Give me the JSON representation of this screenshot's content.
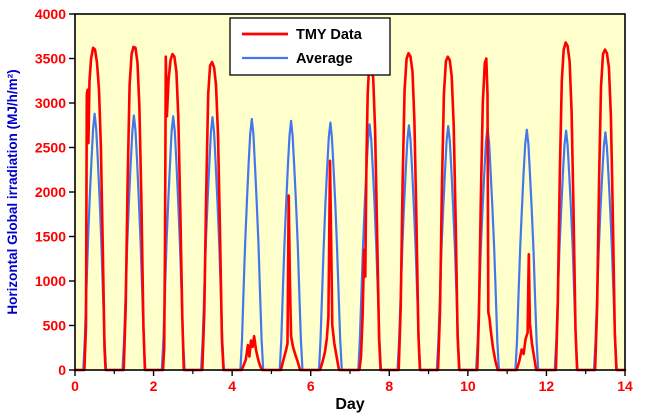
{
  "chart_data": {
    "type": "line",
    "title": "",
    "xlabel": "Day",
    "ylabel": "Horizontal Global irradiation (MJ/h/m²)",
    "xlim": [
      0,
      14
    ],
    "ylim": [
      0,
      4000
    ],
    "x_major_ticks": [
      0,
      2,
      4,
      6,
      8,
      10,
      12,
      14
    ],
    "x_minor_ticks": [
      1,
      3,
      5,
      7,
      9,
      11,
      13
    ],
    "y_ticks": [
      0,
      500,
      1000,
      1500,
      2000,
      2500,
      3000,
      3500,
      4000
    ],
    "plot_background": "#FFFFCC",
    "axis_color": "#000000",
    "tick_label_color": "#FF0000",
    "xlabel_color": "#000000",
    "ylabel_color": "#0000CC",
    "grid": false,
    "legend": {
      "position": "top-center",
      "entries": [
        {
          "label": "TMY Data",
          "color": "#FF0000"
        },
        {
          "label": "Average",
          "color": "#4477EE"
        }
      ]
    },
    "series": {
      "average": {
        "name": "Average",
        "color": "#4477EE",
        "daily_peaks": [
          2880,
          2860,
          2850,
          2840,
          2820,
          2800,
          2780,
          2760,
          2750,
          2740,
          2720,
          2700,
          2690,
          2670
        ],
        "day_shape": [
          [
            0.21,
            0
          ],
          [
            0.25,
            0.12
          ],
          [
            0.29,
            0.31
          ],
          [
            0.33,
            0.5
          ],
          [
            0.375,
            0.67
          ],
          [
            0.42,
            0.82
          ],
          [
            0.46,
            0.94
          ],
          [
            0.5,
            1.0
          ],
          [
            0.54,
            0.94
          ],
          [
            0.58,
            0.82
          ],
          [
            0.625,
            0.67
          ],
          [
            0.67,
            0.5
          ],
          [
            0.71,
            0.31
          ],
          [
            0.75,
            0.12
          ],
          [
            0.79,
            0
          ]
        ]
      },
      "tmy": {
        "name": "TMY Data",
        "color": "#FF0000",
        "daily_points": [
          [
            [
              0.24,
              0
            ],
            [
              0.28,
              500
            ],
            [
              0.3,
              3100
            ],
            [
              0.32,
              3150
            ],
            [
              0.34,
              2550
            ],
            [
              0.37,
              3250
            ],
            [
              0.41,
              3500
            ],
            [
              0.46,
              3620
            ],
            [
              0.51,
              3600
            ],
            [
              0.56,
              3450
            ],
            [
              0.61,
              3150
            ],
            [
              0.66,
              2500
            ],
            [
              0.71,
              1300
            ],
            [
              0.75,
              250
            ],
            [
              0.78,
              0
            ]
          ],
          [
            [
              0.24,
              0
            ],
            [
              0.29,
              700
            ],
            [
              0.34,
              2100
            ],
            [
              0.39,
              3200
            ],
            [
              0.44,
              3550
            ],
            [
              0.49,
              3630
            ],
            [
              0.54,
              3620
            ],
            [
              0.59,
              3450
            ],
            [
              0.64,
              2950
            ],
            [
              0.69,
              1900
            ],
            [
              0.74,
              500
            ],
            [
              0.78,
              0
            ]
          ],
          [
            [
              0.24,
              0
            ],
            [
              0.27,
              250
            ],
            [
              0.29,
              1400
            ],
            [
              0.31,
              3520
            ],
            [
              0.34,
              2850
            ],
            [
              0.38,
              3250
            ],
            [
              0.43,
              3480
            ],
            [
              0.48,
              3550
            ],
            [
              0.53,
              3520
            ],
            [
              0.58,
              3350
            ],
            [
              0.63,
              2850
            ],
            [
              0.68,
              1800
            ],
            [
              0.73,
              600
            ],
            [
              0.77,
              0
            ]
          ],
          [
            [
              0.24,
              0
            ],
            [
              0.29,
              650
            ],
            [
              0.34,
              2000
            ],
            [
              0.39,
              3100
            ],
            [
              0.44,
              3420
            ],
            [
              0.49,
              3460
            ],
            [
              0.54,
              3400
            ],
            [
              0.59,
              3200
            ],
            [
              0.64,
              2650
            ],
            [
              0.69,
              1550
            ],
            [
              0.74,
              350
            ],
            [
              0.78,
              0
            ]
          ],
          [
            [
              0.24,
              0
            ],
            [
              0.3,
              60
            ],
            [
              0.35,
              120
            ],
            [
              0.4,
              280
            ],
            [
              0.44,
              150
            ],
            [
              0.48,
              330
            ],
            [
              0.52,
              260
            ],
            [
              0.56,
              380
            ],
            [
              0.61,
              220
            ],
            [
              0.66,
              120
            ],
            [
              0.71,
              50
            ],
            [
              0.76,
              0
            ]
          ],
          [
            [
              0.24,
              0
            ],
            [
              0.31,
              120
            ],
            [
              0.37,
              220
            ],
            [
              0.41,
              300
            ],
            [
              0.44,
              1960
            ],
            [
              0.47,
              1000
            ],
            [
              0.5,
              380
            ],
            [
              0.55,
              260
            ],
            [
              0.61,
              170
            ],
            [
              0.67,
              90
            ],
            [
              0.73,
              0
            ]
          ],
          [
            [
              0.24,
              0
            ],
            [
              0.3,
              90
            ],
            [
              0.36,
              200
            ],
            [
              0.41,
              350
            ],
            [
              0.45,
              600
            ],
            [
              0.49,
              2350
            ],
            [
              0.52,
              1500
            ],
            [
              0.55,
              500
            ],
            [
              0.6,
              300
            ],
            [
              0.66,
              150
            ],
            [
              0.72,
              0
            ]
          ],
          [
            [
              0.24,
              0
            ],
            [
              0.28,
              150
            ],
            [
              0.32,
              600
            ],
            [
              0.36,
              1350
            ],
            [
              0.39,
              1050
            ],
            [
              0.42,
              2400
            ],
            [
              0.45,
              3100
            ],
            [
              0.49,
              3460
            ],
            [
              0.54,
              3440
            ],
            [
              0.59,
              3280
            ],
            [
              0.64,
              2700
            ],
            [
              0.69,
              1550
            ],
            [
              0.74,
              350
            ],
            [
              0.78,
              0
            ]
          ],
          [
            [
              0.24,
              0
            ],
            [
              0.29,
              700
            ],
            [
              0.34,
              2100
            ],
            [
              0.39,
              3150
            ],
            [
              0.44,
              3500
            ],
            [
              0.49,
              3560
            ],
            [
              0.54,
              3520
            ],
            [
              0.59,
              3350
            ],
            [
              0.64,
              2800
            ],
            [
              0.69,
              1700
            ],
            [
              0.74,
              400
            ],
            [
              0.78,
              0
            ]
          ],
          [
            [
              0.24,
              0
            ],
            [
              0.29,
              650
            ],
            [
              0.34,
              2050
            ],
            [
              0.39,
              3100
            ],
            [
              0.44,
              3470
            ],
            [
              0.49,
              3520
            ],
            [
              0.54,
              3480
            ],
            [
              0.59,
              3300
            ],
            [
              0.64,
              2750
            ],
            [
              0.69,
              1650
            ],
            [
              0.74,
              380
            ],
            [
              0.78,
              0
            ]
          ],
          [
            [
              0.24,
              0
            ],
            [
              0.28,
              600
            ],
            [
              0.33,
              1900
            ],
            [
              0.38,
              3000
            ],
            [
              0.43,
              3450
            ],
            [
              0.47,
              3500
            ],
            [
              0.5,
              3100
            ],
            [
              0.52,
              650
            ],
            [
              0.55,
              580
            ],
            [
              0.59,
              420
            ],
            [
              0.64,
              250
            ],
            [
              0.7,
              100
            ],
            [
              0.76,
              0
            ]
          ],
          [
            [
              0.24,
              0
            ],
            [
              0.31,
              100
            ],
            [
              0.37,
              230
            ],
            [
              0.42,
              180
            ],
            [
              0.47,
              350
            ],
            [
              0.52,
              420
            ],
            [
              0.55,
              1300
            ],
            [
              0.58,
              520
            ],
            [
              0.63,
              300
            ],
            [
              0.68,
              160
            ],
            [
              0.74,
              0
            ]
          ],
          [
            [
              0.24,
              0
            ],
            [
              0.29,
              750
            ],
            [
              0.34,
              2200
            ],
            [
              0.39,
              3250
            ],
            [
              0.44,
              3600
            ],
            [
              0.49,
              3680
            ],
            [
              0.54,
              3640
            ],
            [
              0.59,
              3470
            ],
            [
              0.64,
              2900
            ],
            [
              0.69,
              1800
            ],
            [
              0.74,
              450
            ],
            [
              0.78,
              0
            ]
          ],
          [
            [
              0.24,
              0
            ],
            [
              0.29,
              700
            ],
            [
              0.34,
              2150
            ],
            [
              0.39,
              3180
            ],
            [
              0.44,
              3550
            ],
            [
              0.49,
              3600
            ],
            [
              0.54,
              3560
            ],
            [
              0.59,
              3400
            ],
            [
              0.64,
              2850
            ],
            [
              0.69,
              1750
            ],
            [
              0.74,
              420
            ],
            [
              0.78,
              0
            ]
          ]
        ]
      }
    }
  }
}
